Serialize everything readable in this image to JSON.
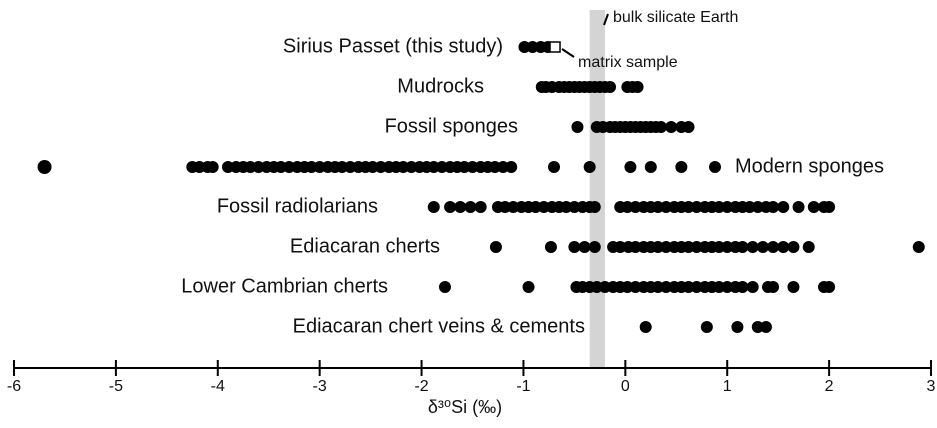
{
  "chart_data": {
    "type": "strip",
    "xlabel": "δ³⁰Si (‰)",
    "xlim": [
      -6,
      3
    ],
    "xticks": [
      -6,
      -5,
      -4,
      -3,
      -2,
      -1,
      0,
      1,
      2,
      3
    ],
    "band": {
      "label": "bulk silicate Earth",
      "range": [
        -0.35,
        -0.2
      ],
      "color": "#d4d4d4"
    },
    "annotations": [
      {
        "text": "matrix sample",
        "x": -0.69
      }
    ],
    "series": [
      {
        "name": "Sirius Passet (this study)",
        "color": "#000000",
        "values": [
          -0.99,
          -0.91,
          -0.83,
          -0.76
        ]
      },
      {
        "name": "Mudrocks",
        "color": "#000000",
        "values": [
          -0.82,
          -0.78,
          -0.72,
          -0.65,
          -0.6,
          -0.55,
          -0.5,
          -0.45,
          -0.4,
          -0.35,
          -0.3,
          -0.25,
          -0.2,
          -0.15,
          0.02,
          0.07,
          0.12
        ]
      },
      {
        "name": "Fossil sponges",
        "color": "#000000",
        "values": [
          -0.47,
          -0.28,
          -0.22,
          -0.15,
          -0.1,
          -0.05,
          0,
          0.05,
          0.1,
          0.15,
          0.2,
          0.25,
          0.3,
          0.35,
          0.45,
          0.55,
          0.62
        ]
      },
      {
        "name": "Modern sponges",
        "color": "#000000",
        "values": [
          -5.7,
          -4.25,
          -4.18,
          -4.1,
          -4.05,
          -3.9,
          -3.82,
          -3.75,
          -3.68,
          -3.6,
          -3.52,
          -3.45,
          -3.38,
          -3.3,
          -3.22,
          -3.15,
          -3.08,
          -3.0,
          -2.92,
          -2.85,
          -2.78,
          -2.7,
          -2.62,
          -2.55,
          -2.48,
          -2.4,
          -2.32,
          -2.25,
          -2.18,
          -2.1,
          -2.02,
          -1.95,
          -1.88,
          -1.8,
          -1.72,
          -1.65,
          -1.58,
          -1.5,
          -1.42,
          -1.35,
          -1.28,
          -1.2,
          -1.12,
          -0.7,
          -0.35,
          0.05,
          0.25,
          0.55,
          0.88
        ]
      },
      {
        "name": "Fossil radiolarians",
        "color": "#000000",
        "values": [
          -1.88,
          -1.72,
          -1.62,
          -1.52,
          -1.42,
          -1.25,
          -1.18,
          -1.1,
          -1.02,
          -0.95,
          -0.88,
          -0.8,
          -0.72,
          -0.65,
          -0.58,
          -0.5,
          -0.42,
          -0.35,
          -0.3,
          -0.05,
          0.02,
          0.1,
          0.18,
          0.25,
          0.32,
          0.4,
          0.48,
          0.55,
          0.62,
          0.7,
          0.78,
          0.85,
          0.92,
          1.0,
          1.08,
          1.15,
          1.22,
          1.3,
          1.38,
          1.45,
          1.55,
          1.7,
          1.85,
          1.95,
          2.0
        ]
      },
      {
        "name": "Ediacaran cherts",
        "color": "#000000",
        "values": [
          -1.27,
          -0.73,
          -0.5,
          -0.4,
          -0.3,
          -0.12,
          -0.05,
          0.03,
          0.1,
          0.18,
          0.25,
          0.32,
          0.4,
          0.48,
          0.55,
          0.62,
          0.7,
          0.78,
          0.85,
          0.92,
          1.0,
          1.08,
          1.15,
          1.25,
          1.35,
          1.45,
          1.55,
          1.65,
          1.8,
          2.88
        ]
      },
      {
        "name": "Lower Cambrian cherts",
        "color": "#000000",
        "values": [
          -1.77,
          -0.95,
          -0.48,
          -0.42,
          -0.35,
          -0.28,
          -0.2,
          -0.12,
          -0.05,
          0.02,
          0.1,
          0.18,
          0.25,
          0.32,
          0.4,
          0.48,
          0.55,
          0.62,
          0.7,
          0.78,
          0.85,
          0.92,
          1.0,
          1.08,
          1.15,
          1.25,
          1.4,
          1.45,
          1.65,
          1.95,
          2.0
        ]
      },
      {
        "name": "Ediacaran chert veins & cements",
        "color": "#000000",
        "values": [
          0.2,
          0.8,
          1.1,
          1.3,
          1.38
        ]
      }
    ]
  }
}
